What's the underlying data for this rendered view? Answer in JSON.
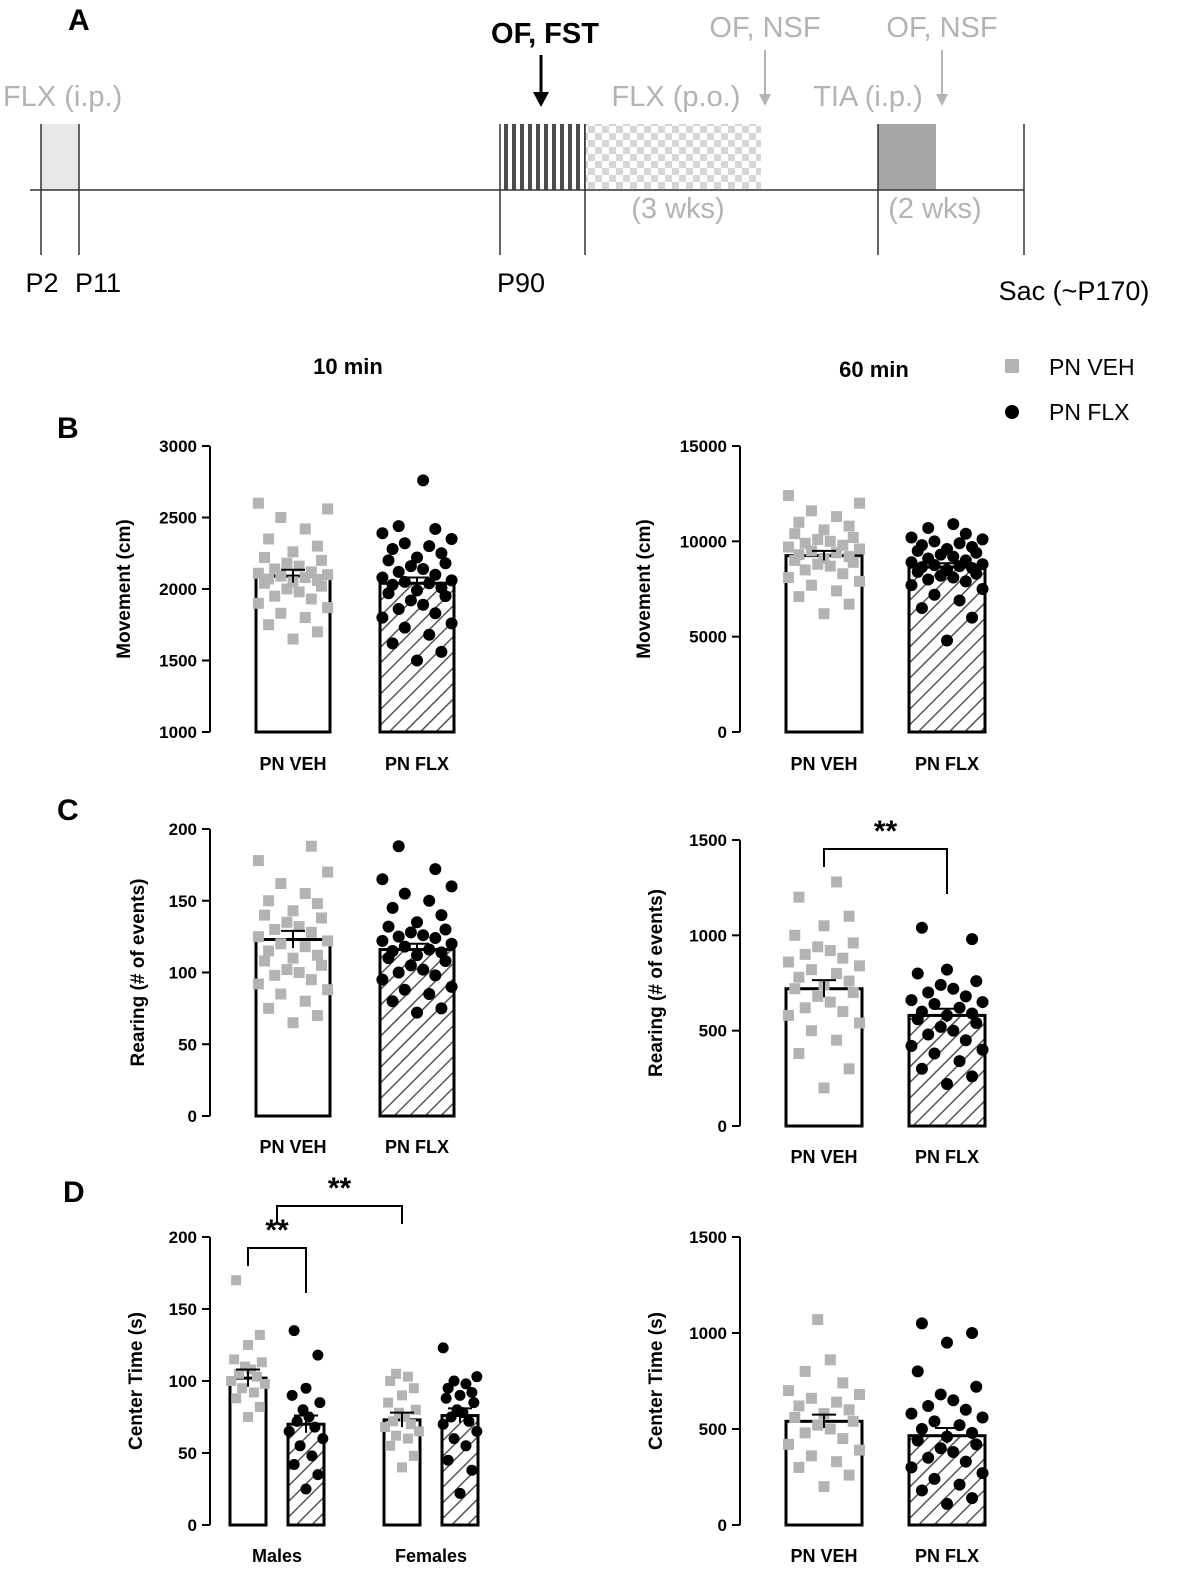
{
  "figure": {
    "timeline": {
      "panel_letter": "A",
      "labels": {
        "flx_ip": "FLX (i.p.)",
        "of_fst": "OF, FST",
        "of_nsf_1": "OF, NSF",
        "of_nsf_2": "OF, NSF",
        "flx_po": "FLX (p.o.)",
        "tia_ip": "TIA (i.p.)",
        "three_wks": "(3 wks)",
        "two_wks": "(2 wks)",
        "p2": "P2",
        "p11": "P11",
        "p90": "P90",
        "sac": "Sac (~P170)"
      }
    },
    "column_titles": {
      "left": "10 min",
      "right": "60 min"
    },
    "legend": [
      {
        "label": "PN VEH",
        "marker": "square",
        "color": "#b3b3b3"
      },
      {
        "label": "PN FLX",
        "marker": "circle",
        "color": "#000000"
      }
    ],
    "colors": {
      "veh": "#b3b3b3",
      "flx": "#000000"
    }
  },
  "chart_data": [
    {
      "id": "B-left",
      "panel_letter": "B",
      "type": "bar",
      "ylabel": "Movement (cm)",
      "ylim": [
        1000,
        3000
      ],
      "yticks": [
        "1000",
        "1500",
        "2000",
        "2500",
        "3000"
      ],
      "categories": [
        "PN VEH",
        "PN FLX"
      ],
      "series": [
        {
          "name": "PN VEH",
          "mean": 2090,
          "sem": 45,
          "points": [
            1650,
            1700,
            1750,
            1800,
            1830,
            1870,
            1900,
            1930,
            1950,
            1980,
            2000,
            2020,
            2040,
            2050,
            2060,
            2070,
            2080,
            2090,
            2100,
            2110,
            2120,
            2140,
            2160,
            2180,
            2200,
            2220,
            2260,
            2300,
            2350,
            2420,
            2500,
            2560,
            2600
          ]
        },
        {
          "name": "PN FLX",
          "mean": 2040,
          "sem": 40,
          "points": [
            1500,
            1560,
            1620,
            1680,
            1730,
            1760,
            1800,
            1830,
            1860,
            1890,
            1920,
            1950,
            1970,
            1990,
            2010,
            2030,
            2040,
            2050,
            2060,
            2080,
            2100,
            2120,
            2140,
            2160,
            2180,
            2200,
            2220,
            2250,
            2280,
            2300,
            2320,
            2350,
            2390,
            2420,
            2440,
            2760
          ]
        }
      ],
      "significance": []
    },
    {
      "id": "B-right",
      "type": "bar",
      "ylabel": "Movement (cm)",
      "ylim": [
        0,
        15000
      ],
      "yticks": [
        "0",
        "5000",
        "10000",
        "15000"
      ],
      "categories": [
        "PN VEH",
        "PN FLX"
      ],
      "series": [
        {
          "name": "PN VEH",
          "mean": 9250,
          "sem": 250,
          "points": [
            6200,
            6700,
            7100,
            7400,
            7700,
            7900,
            8100,
            8300,
            8500,
            8700,
            8800,
            8900,
            9000,
            9100,
            9200,
            9300,
            9400,
            9500,
            9600,
            9700,
            9800,
            9900,
            10000,
            10100,
            10200,
            10400,
            10600,
            10800,
            11000,
            11300,
            11600,
            12000,
            12400
          ]
        },
        {
          "name": "PN FLX",
          "mean": 8650,
          "sem": 200,
          "points": [
            4800,
            6000,
            6500,
            6900,
            7200,
            7500,
            7700,
            7900,
            8000,
            8100,
            8200,
            8300,
            8400,
            8500,
            8600,
            8650,
            8700,
            8750,
            8800,
            8900,
            9000,
            9100,
            9200,
            9300,
            9400,
            9500,
            9600,
            9700,
            9800,
            9900,
            10000,
            10100,
            10200,
            10400,
            10700,
            10900
          ]
        }
      ],
      "significance": []
    },
    {
      "id": "C-left",
      "panel_letter": "C",
      "type": "bar",
      "ylabel": "Rearing (# of events)",
      "ylim": [
        0,
        200
      ],
      "yticks": [
        "0",
        "50",
        "100",
        "150",
        "200"
      ],
      "categories": [
        "PN VEH",
        "PN FLX"
      ],
      "series": [
        {
          "name": "PN VEH",
          "mean": 123,
          "sem": 6,
          "points": [
            65,
            70,
            75,
            80,
            85,
            88,
            92,
            95,
            98,
            100,
            102,
            105,
            108,
            110,
            112,
            115,
            118,
            120,
            122,
            125,
            128,
            130,
            132,
            135,
            138,
            140,
            143,
            148,
            150,
            155,
            162,
            170,
            178,
            188
          ]
        },
        {
          "name": "PN FLX",
          "mean": 116,
          "sem": 4,
          "points": [
            72,
            75,
            80,
            85,
            88,
            90,
            95,
            98,
            100,
            102,
            105,
            108,
            110,
            112,
            114,
            115,
            116,
            118,
            120,
            122,
            124,
            125,
            126,
            128,
            130,
            132,
            135,
            140,
            145,
            150,
            155,
            160,
            165,
            172,
            188
          ]
        }
      ],
      "significance": []
    },
    {
      "id": "C-right",
      "type": "bar",
      "ylabel": "Rearing (# of events)",
      "ylim": [
        0,
        1500
      ],
      "yticks": [
        "0",
        "500",
        "1000",
        "1500"
      ],
      "categories": [
        "PN VEH",
        "PN FLX"
      ],
      "series": [
        {
          "name": "PN VEH",
          "mean": 720,
          "sem": 45,
          "points": [
            200,
            300,
            380,
            450,
            500,
            540,
            580,
            600,
            620,
            650,
            680,
            700,
            720,
            740,
            760,
            780,
            800,
            820,
            840,
            860,
            880,
            900,
            920,
            940,
            960,
            1000,
            1050,
            1100,
            1200,
            1280
          ]
        },
        {
          "name": "PN FLX",
          "mean": 580,
          "sem": 35,
          "points": [
            220,
            260,
            300,
            340,
            380,
            400,
            420,
            450,
            480,
            500,
            520,
            540,
            560,
            580,
            590,
            600,
            620,
            640,
            650,
            660,
            680,
            700,
            720,
            740,
            760,
            800,
            820,
            980,
            1040
          ]
        }
      ],
      "significance": [
        {
          "from": 0,
          "to": 1,
          "label": "**"
        }
      ]
    },
    {
      "id": "D-left",
      "panel_letter": "D",
      "type": "bar",
      "ylabel": "Center Time (s)",
      "ylim": [
        0,
        200
      ],
      "yticks": [
        "0",
        "50",
        "100",
        "150",
        "200"
      ],
      "categories": [
        "Males",
        "Females"
      ],
      "series": [
        {
          "name": "PN VEH",
          "group": 0,
          "mean": 102,
          "sem": 6,
          "points": [
            75,
            82,
            88,
            92,
            95,
            98,
            100,
            103,
            105,
            108,
            110,
            113,
            115,
            125,
            132,
            170
          ]
        },
        {
          "name": "PN FLX",
          "group": 0,
          "mean": 70,
          "sem": 6,
          "points": [
            25,
            35,
            42,
            48,
            55,
            60,
            65,
            68,
            72,
            75,
            80,
            85,
            90,
            95,
            118,
            135
          ]
        },
        {
          "name": "PN VEH",
          "group": 1,
          "mean": 73,
          "sem": 5,
          "points": [
            40,
            48,
            55,
            60,
            62,
            65,
            68,
            70,
            72,
            75,
            78,
            80,
            85,
            90,
            95,
            100,
            103,
            105
          ]
        },
        {
          "name": "PN FLX",
          "group": 1,
          "mean": 76,
          "sem": 5,
          "points": [
            22,
            38,
            45,
            55,
            60,
            65,
            70,
            72,
            75,
            78,
            80,
            85,
            88,
            90,
            92,
            95,
            98,
            100,
            103,
            123
          ]
        }
      ],
      "significance": [
        {
          "from": 0,
          "to": 1,
          "label": "**"
        },
        {
          "from": 0.5,
          "to": 2,
          "label": "**"
        }
      ]
    },
    {
      "id": "D-right",
      "type": "bar",
      "ylabel": "Center Time (s)",
      "ylim": [
        0,
        1500
      ],
      "yticks": [
        "0",
        "500",
        "1000",
        "1500"
      ],
      "categories": [
        "PN VEH",
        "PN FLX"
      ],
      "series": [
        {
          "name": "PN VEH",
          "mean": 540,
          "sem": 35,
          "points": [
            200,
            260,
            300,
            330,
            360,
            390,
            420,
            450,
            480,
            500,
            520,
            540,
            560,
            580,
            600,
            620,
            640,
            660,
            680,
            700,
            740,
            800,
            860,
            1070
          ]
        },
        {
          "name": "PN FLX",
          "mean": 465,
          "sem": 40,
          "points": [
            110,
            140,
            180,
            210,
            240,
            270,
            300,
            330,
            350,
            380,
            400,
            420,
            440,
            460,
            480,
            500,
            520,
            540,
            560,
            580,
            600,
            620,
            650,
            680,
            720,
            800,
            950,
            1000,
            1050
          ]
        }
      ],
      "significance": []
    }
  ]
}
